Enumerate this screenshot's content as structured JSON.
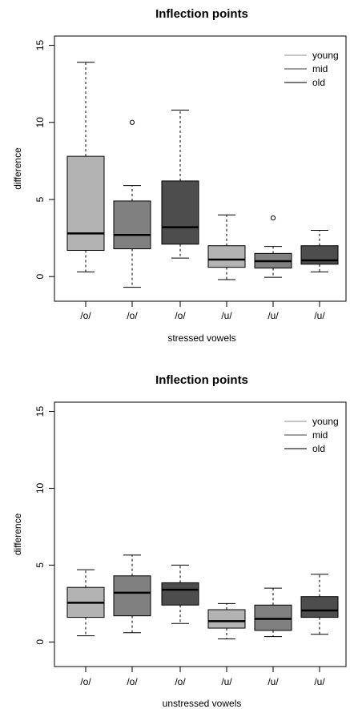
{
  "chart_data": [
    {
      "type": "box",
      "title": "Inflection points",
      "xlabel": "stressed vowels",
      "ylabel": "difference",
      "ylim": [
        -1.6,
        15.6
      ],
      "yticks": [
        0,
        5,
        10,
        15
      ],
      "categories": [
        "/o/",
        "/o/",
        "/o/",
        "/u/",
        "/u/",
        "/u/"
      ],
      "groups": [
        "young",
        "mid",
        "old",
        "young",
        "mid",
        "old"
      ],
      "colors": [
        "#b3b3b3",
        "#808080",
        "#4d4d4d",
        "#b3b3b3",
        "#808080",
        "#4d4d4d"
      ],
      "boxes": [
        {
          "whisker_low": 0.3,
          "q1": 1.7,
          "median": 2.8,
          "q3": 7.8,
          "whisker_high": 13.9,
          "outliers": []
        },
        {
          "whisker_low": -0.7,
          "q1": 1.8,
          "median": 2.7,
          "q3": 4.9,
          "whisker_high": 5.9,
          "outliers": [
            10.0
          ]
        },
        {
          "whisker_low": 1.2,
          "q1": 2.1,
          "median": 3.2,
          "q3": 6.2,
          "whisker_high": 10.8,
          "outliers": []
        },
        {
          "whisker_low": -0.2,
          "q1": 0.6,
          "median": 1.1,
          "q3": 2.0,
          "whisker_high": 4.0,
          "outliers": []
        },
        {
          "whisker_low": -0.05,
          "q1": 0.55,
          "median": 1.0,
          "q3": 1.5,
          "whisker_high": 1.95,
          "outliers": [
            3.8
          ]
        },
        {
          "whisker_low": 0.3,
          "q1": 0.8,
          "median": 1.05,
          "q3": 2.0,
          "whisker_high": 3.0,
          "outliers": []
        }
      ],
      "legend": {
        "position": "top-right",
        "entries": [
          {
            "label": "young",
            "color": "#b3b3b3"
          },
          {
            "label": "mid",
            "color": "#808080"
          },
          {
            "label": "old",
            "color": "#4d4d4d"
          }
        ]
      }
    },
    {
      "type": "box",
      "title": "Inflection points",
      "xlabel": "unstressed vowels",
      "ylabel": "difference",
      "ylim": [
        -1.6,
        15.6
      ],
      "yticks": [
        0,
        5,
        10,
        15
      ],
      "categories": [
        "/o/",
        "/o/",
        "/o/",
        "/u/",
        "/u/",
        "/u/"
      ],
      "groups": [
        "young",
        "mid",
        "old",
        "young",
        "mid",
        "old"
      ],
      "colors": [
        "#b3b3b3",
        "#808080",
        "#4d4d4d",
        "#b3b3b3",
        "#808080",
        "#4d4d4d"
      ],
      "boxes": [
        {
          "whisker_low": 0.4,
          "q1": 1.6,
          "median": 2.55,
          "q3": 3.55,
          "whisker_high": 4.7,
          "outliers": []
        },
        {
          "whisker_low": 0.6,
          "q1": 1.7,
          "median": 3.2,
          "q3": 4.3,
          "whisker_high": 5.65,
          "outliers": []
        },
        {
          "whisker_low": 1.2,
          "q1": 2.4,
          "median": 3.4,
          "q3": 3.85,
          "whisker_high": 5.0,
          "outliers": []
        },
        {
          "whisker_low": 0.2,
          "q1": 0.9,
          "median": 1.35,
          "q3": 2.1,
          "whisker_high": 2.5,
          "outliers": []
        },
        {
          "whisker_low": 0.35,
          "q1": 0.75,
          "median": 1.5,
          "q3": 2.4,
          "whisker_high": 3.5,
          "outliers": []
        },
        {
          "whisker_low": 0.5,
          "q1": 1.6,
          "median": 2.05,
          "q3": 2.95,
          "whisker_high": 4.4,
          "outliers": []
        }
      ],
      "legend": {
        "position": "top-right",
        "entries": [
          {
            "label": "young",
            "color": "#b3b3b3"
          },
          {
            "label": "mid",
            "color": "#808080"
          },
          {
            "label": "old",
            "color": "#4d4d4d"
          }
        ]
      }
    }
  ]
}
